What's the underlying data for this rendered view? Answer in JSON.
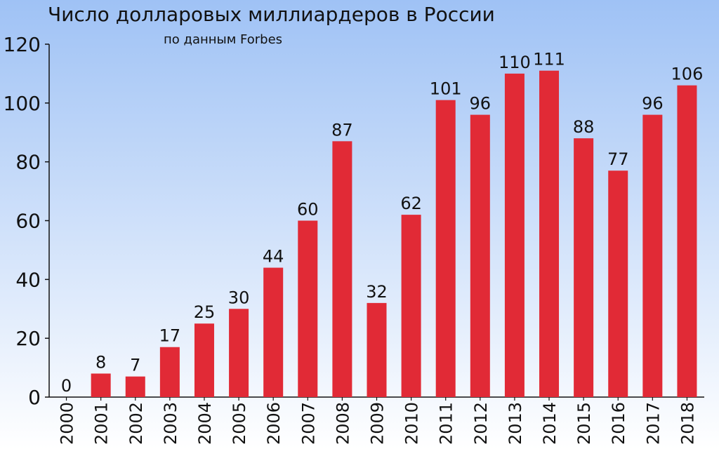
{
  "chart_data": {
    "type": "bar",
    "title": "Число долларовых миллиардеров в России",
    "subtitle": "по данным Forbes",
    "categories": [
      "2000",
      "2001",
      "2002",
      "2003",
      "2004",
      "2005",
      "2006",
      "2007",
      "2008",
      "2009",
      "2010",
      "2011",
      "2012",
      "2013",
      "2014",
      "2015",
      "2016",
      "2017",
      "2018"
    ],
    "values": [
      0,
      8,
      7,
      17,
      25,
      30,
      44,
      60,
      87,
      32,
      62,
      101,
      96,
      110,
      111,
      88,
      77,
      96,
      106
    ],
    "ylim": [
      0,
      120
    ],
    "yticks": [
      0,
      20,
      40,
      60,
      80,
      100,
      120
    ],
    "grid": false,
    "data_labels": true,
    "colors": {
      "bar": "#e12a36",
      "background_top": "#9fc2f5",
      "background_bottom": "#ffffff",
      "axis": "#111111"
    }
  }
}
